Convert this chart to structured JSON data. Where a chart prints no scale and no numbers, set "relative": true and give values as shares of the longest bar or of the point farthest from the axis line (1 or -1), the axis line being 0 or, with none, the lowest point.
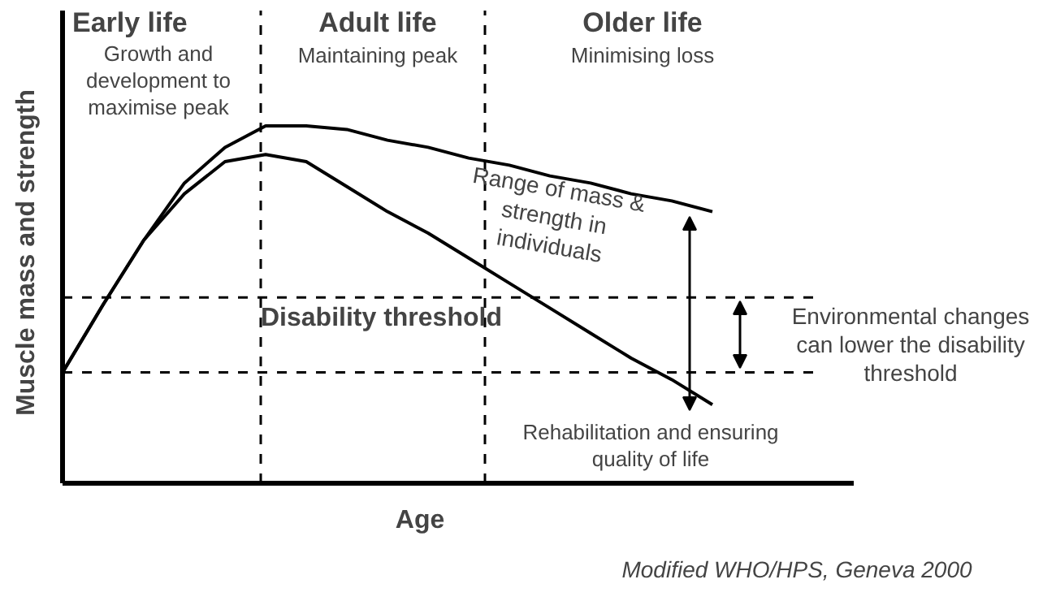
{
  "chart_data": {
    "type": "line",
    "relative": true,
    "xlabel": "Age",
    "ylabel": "Muscle mass and strength",
    "grid": false,
    "line_style": "solid",
    "marker": "none",
    "categories": [
      null,
      null,
      null,
      null,
      null,
      null,
      null,
      null,
      null,
      null,
      null,
      null,
      null,
      null,
      null,
      null,
      null,
      null,
      null,
      null
    ],
    "series": [
      {
        "color": "#000000",
        "values": [
          0.31,
          0.5,
          0.68,
          0.84,
          0.94,
          1.0,
          1.0,
          0.99,
          0.96,
          0.94,
          0.91,
          0.89,
          0.86,
          0.84,
          0.81,
          0.79,
          0.76,
          null,
          null,
          null
        ]
      },
      {
        "color": "#000000",
        "values": [
          0.31,
          0.5,
          0.68,
          0.81,
          0.9,
          0.92,
          0.9,
          0.83,
          0.76,
          0.7,
          0.63,
          0.56,
          0.49,
          0.42,
          0.35,
          0.29,
          0.22,
          null,
          null,
          null
        ]
      }
    ],
    "ref_lines": [
      {
        "axis": "y",
        "value": 0.52,
        "label": "Disability threshold",
        "line_style": "dashed",
        "color": "#000000"
      },
      {
        "axis": "y",
        "value": 0.31,
        "label": null,
        "line_style": "dashed",
        "color": "#000000"
      }
    ],
    "annotations": [
      "Early life",
      "Growth and development to maximise peak",
      "Adult life",
      "Maintaining peak",
      "Older life",
      "Minimising loss",
      "Range of mass & strength in individuals",
      "Environmental changes can lower the disability threshold",
      "Rehabilitation and ensuring quality of life",
      "Modified WHO/HPS, Geneva 2000"
    ]
  }
}
